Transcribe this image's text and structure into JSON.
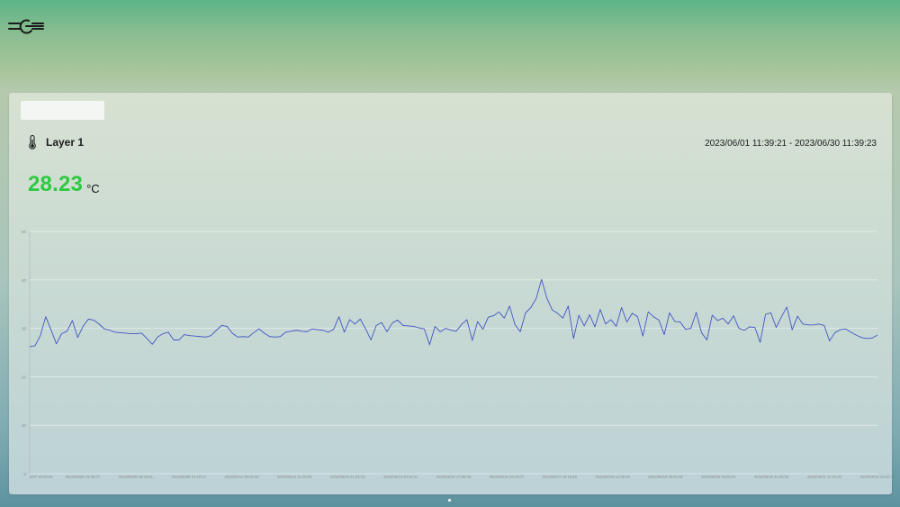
{
  "header": {
    "logo_icon": "logo-icon"
  },
  "card": {
    "layer_icon": "thermometer-icon",
    "layer_name": "Layer 1",
    "date_range": "2023/06/01 11:39:21 - 2023/06/30 11:39:23",
    "current_value": "28.23",
    "unit": "°C"
  },
  "colors": {
    "value": "#2ec93f",
    "line": "#4355c4"
  },
  "chart_data": {
    "type": "line",
    "title": "",
    "xlabel": "",
    "ylabel": "",
    "ylim": [
      0,
      50
    ],
    "yticks": [
      "0",
      "10",
      "20",
      "30",
      "40",
      "50"
    ],
    "grid": true,
    "xticklabels": [
      "6/07 18:00:00",
      "2023/06/08 15:00:07",
      "2023/06/08 06:40:51",
      "2023/06/09 21:10:17",
      "2023/06/11 00:02:26",
      "2023/06/12 21:00:00",
      "2023/06/13 21:32:13",
      "2023/06/14 20:44:11",
      "2023/06/15 17:00:03",
      "2023/06/16 10:13:07",
      "2023/06/17 18:18:20",
      "2023/06/18 12:08:16",
      "2023/06/19 08:42:28",
      "2023/06/20 03:02:01",
      "2023/06/20 21:08:32",
      "2023/06/21 17:01:04",
      "2023/06/22 10:02:47"
    ],
    "series": [
      {
        "values": [
          26.2,
          26.4,
          28.5,
          32.4,
          29.7,
          26.8,
          28.9,
          29.4,
          31.6,
          28.1,
          30.4,
          31.9,
          31.7,
          30.9,
          29.9,
          29.6,
          29.2,
          29.1,
          29.0,
          28.9,
          28.9,
          29.0,
          27.9,
          26.7,
          28.2,
          28.9,
          29.2,
          27.6,
          27.6,
          28.7,
          28.5,
          28.4,
          28.3,
          28.2,
          28.5,
          29.6,
          30.6,
          30.4,
          29.0,
          28.2,
          28.3,
          28.2,
          29.1,
          29.9,
          29.0,
          28.3,
          28.2,
          28.3,
          29.2,
          29.4,
          29.6,
          29.4,
          29.3,
          29.9,
          29.7,
          29.6,
          29.2,
          29.8,
          32.4,
          29.2,
          31.8,
          30.9,
          31.9,
          29.9,
          27.6,
          30.6,
          31.2,
          29.3,
          31.1,
          31.7,
          30.6,
          30.5,
          30.4,
          30.1,
          29.9,
          26.6,
          30.4,
          29.3,
          30.0,
          29.6,
          29.4,
          30.8,
          31.8,
          27.5,
          31.4,
          29.8,
          32.3,
          32.6,
          33.4,
          32.1,
          34.6,
          30.8,
          29.3,
          33.2,
          34.3,
          36.2,
          40.1,
          36.2,
          33.8,
          33.1,
          32.1,
          34.6,
          27.9,
          32.7,
          30.5,
          32.8,
          30.3,
          33.9,
          30.9,
          31.8,
          30.4,
          34.3,
          31.3,
          33.1,
          32.4,
          28.4,
          33.4,
          32.4,
          31.7,
          28.7,
          33.2,
          31.4,
          31.3,
          29.8,
          30.0,
          33.3,
          29.1,
          27.6,
          32.7,
          31.6,
          32.1,
          30.9,
          32.6,
          30.0,
          29.6,
          30.3,
          30.2,
          27.1,
          32.9,
          33.2,
          30.2,
          32.4,
          34.4,
          29.7,
          32.5,
          30.9,
          30.7,
          30.7,
          30.9,
          30.6,
          27.4,
          29.1,
          29.7,
          29.9,
          29.2,
          28.6,
          28.1,
          27.9,
          28.0,
          28.6
        ]
      }
    ]
  }
}
